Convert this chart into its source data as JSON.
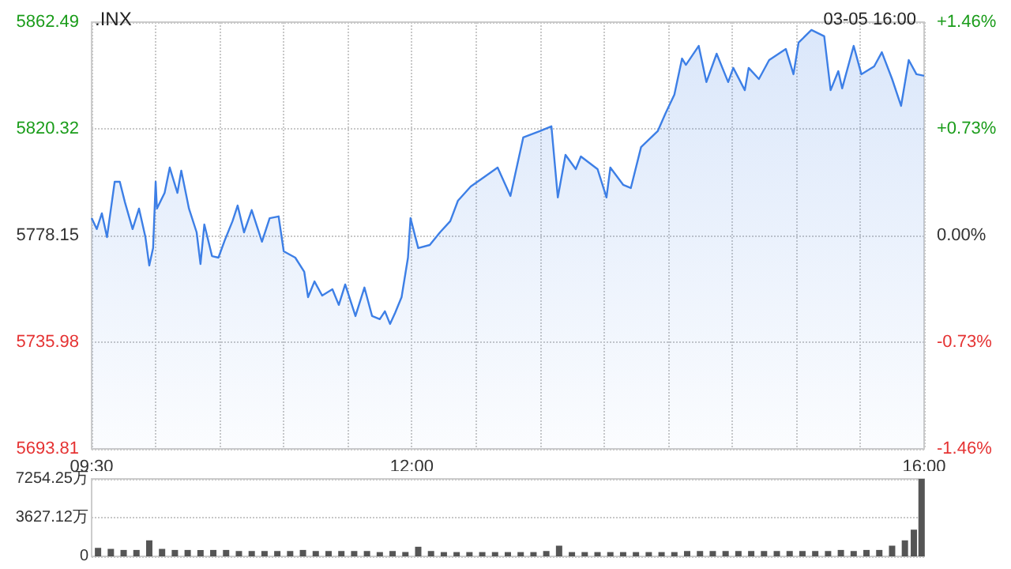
{
  "chart_data": [
    {
      "type": "area",
      "title": ".INX",
      "subtitle": "03-05 16:00",
      "x": [
        9.5,
        9.54,
        9.58,
        9.62,
        9.68,
        9.72,
        9.76,
        9.82,
        9.87,
        9.92,
        9.95,
        9.98,
        10.0,
        10.01,
        10.07,
        10.11,
        10.17,
        10.2,
        10.26,
        10.32,
        10.35,
        10.38,
        10.44,
        10.49,
        10.54,
        10.6,
        10.64,
        10.69,
        10.75,
        10.83,
        10.89,
        10.96,
        11.0,
        11.09,
        11.16,
        11.19,
        11.24,
        11.3,
        11.38,
        11.43,
        11.48,
        11.56,
        11.63,
        11.69,
        11.75,
        11.79,
        11.83,
        11.87,
        11.92,
        11.97,
        11.99,
        12.05,
        12.14,
        12.22,
        12.3,
        12.36,
        12.46,
        12.55,
        12.67,
        12.77,
        12.87,
        13.0,
        13.09,
        13.14,
        13.2,
        13.28,
        13.32,
        13.45,
        13.52,
        13.55,
        13.65,
        13.71,
        13.79,
        13.92,
        13.98,
        14.05,
        14.11,
        14.14,
        14.24,
        14.3,
        14.38,
        14.47,
        14.51,
        14.6,
        14.63,
        14.71,
        14.79,
        14.92,
        14.98,
        15.02,
        15.12,
        15.22,
        15.27,
        15.33,
        15.36,
        15.45,
        15.51,
        15.61,
        15.67,
        15.75,
        15.82,
        15.88,
        15.94,
        16.0
      ],
      "series": [
        {
          "color": "#3d7fe6",
          "values": [
            5785.0,
            5780.7,
            5786.9,
            5777.5,
            5799.4,
            5799.4,
            5791.3,
            5780.7,
            5788.8,
            5777.5,
            5766.3,
            5773.2,
            5799.4,
            5788.8,
            5795.0,
            5805.0,
            5795.0,
            5803.8,
            5788.8,
            5779.4,
            5766.9,
            5782.5,
            5770.0,
            5769.4,
            5776.3,
            5783.8,
            5790.0,
            5779.4,
            5788.2,
            5775.7,
            5785.0,
            5785.7,
            5771.9,
            5769.4,
            5763.8,
            5753.8,
            5760.0,
            5754.4,
            5756.9,
            5750.7,
            5758.8,
            5746.3,
            5757.6,
            5746.3,
            5745.1,
            5748.2,
            5743.2,
            5747.6,
            5753.8,
            5769.4,
            5785.0,
            5773.2,
            5774.4,
            5779.4,
            5783.8,
            5791.9,
            5797.5,
            5800.7,
            5805.0,
            5793.8,
            5816.9,
            5819.4,
            5821.3,
            5793.2,
            5810.0,
            5804.4,
            5809.4,
            5804.4,
            5793.2,
            5805.0,
            5798.2,
            5796.9,
            5813.1,
            5819.4,
            5826.3,
            5833.8,
            5848.1,
            5845.6,
            5853.1,
            5838.8,
            5850.0,
            5838.8,
            5844.4,
            5835.6,
            5844.4,
            5840.0,
            5847.5,
            5851.9,
            5841.9,
            5854.4,
            5859.4,
            5856.9,
            5835.6,
            5843.1,
            5836.3,
            5853.1,
            5841.9,
            5845.0,
            5850.6,
            5840.0,
            5829.4,
            5847.5,
            5841.9,
            5841.3
          ]
        }
      ],
      "xlim": [
        9.5,
        16
      ],
      "xticks": [
        {
          "value": 9.5,
          "label": "09:30"
        },
        {
          "value": 10,
          "label": null
        },
        {
          "value": 10.5,
          "label": null
        },
        {
          "value": 11,
          "label": null
        },
        {
          "value": 11.5,
          "label": null
        },
        {
          "value": 12,
          "label": "12:00"
        },
        {
          "value": 12.5,
          "label": null
        },
        {
          "value": 13,
          "label": null
        },
        {
          "value": 13.5,
          "label": null
        },
        {
          "value": 14,
          "label": null
        },
        {
          "value": 14.5,
          "label": null
        },
        {
          "value": 15,
          "label": null
        },
        {
          "value": 15.5,
          "label": null
        },
        {
          "value": 16,
          "label": "16:00"
        }
      ],
      "ylim": [
        5693.81,
        5862.49
      ],
      "yticks": [
        5693.81,
        5735.98,
        5778.15,
        5820.32,
        5862.49
      ],
      "y2lim": [
        -1.46,
        1.46
      ],
      "y2ticks": [
        {
          "value": -1.46,
          "label": "-1.46%"
        },
        {
          "value": -0.73,
          "label": "-0.73%"
        },
        {
          "value": 0,
          "label": "0.00%"
        },
        {
          "value": 0.73,
          "label": "+0.73%"
        },
        {
          "value": 1.46,
          "label": "+1.46%"
        }
      ],
      "grid": true
    },
    {
      "type": "bar",
      "tick_labels": "y",
      "x": [
        9.55,
        9.65,
        9.75,
        9.85,
        9.95,
        10.05,
        10.15,
        10.25,
        10.35,
        10.45,
        10.55,
        10.65,
        10.75,
        10.85,
        10.95,
        11.05,
        11.15,
        11.25,
        11.35,
        11.45,
        11.55,
        11.65,
        11.75,
        11.85,
        11.95,
        12.05,
        12.15,
        12.25,
        12.35,
        12.45,
        12.55,
        12.65,
        12.75,
        12.85,
        12.95,
        13.05,
        13.15,
        13.25,
        13.35,
        13.45,
        13.55,
        13.65,
        13.75,
        13.85,
        13.95,
        14.05,
        14.15,
        14.25,
        14.35,
        14.45,
        14.55,
        14.65,
        14.75,
        14.85,
        14.95,
        15.05,
        15.15,
        15.25,
        15.35,
        15.45,
        15.55,
        15.65,
        15.75,
        15.85,
        15.92,
        15.98
      ],
      "series": [
        {
          "color": "#555555",
          "values": [
            800,
            700,
            600,
            600,
            1500,
            700,
            600,
            600,
            600,
            600,
            600,
            500,
            500,
            500,
            500,
            500,
            600,
            500,
            500,
            500,
            500,
            500,
            400,
            500,
            400,
            900,
            500,
            400,
            400,
            400,
            400,
            400,
            400,
            400,
            400,
            500,
            1000,
            400,
            400,
            400,
            400,
            400,
            400,
            400,
            400,
            400,
            500,
            500,
            500,
            500,
            500,
            500,
            500,
            500,
            500,
            500,
            500,
            500,
            600,
            500,
            600,
            600,
            1000,
            1500,
            2500,
            7254.25
          ]
        }
      ],
      "xlim": [
        9.5,
        16
      ],
      "ylim": [
        0,
        7254.25
      ],
      "yticks": [
        0,
        {
          "value": 3627.12,
          "label": "3627.12万"
        },
        {
          "value": 7254.25,
          "label": "7254.25万"
        }
      ],
      "grid": "y"
    }
  ]
}
